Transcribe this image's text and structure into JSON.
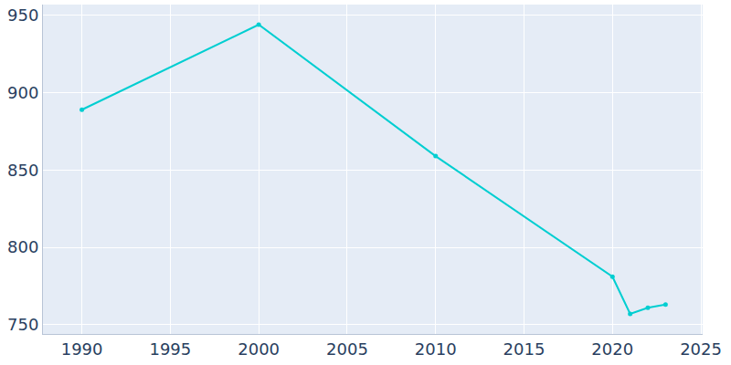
{
  "chart_data": {
    "type": "line",
    "x": [
      1990,
      2000,
      2010,
      2020,
      2021,
      2022,
      2023
    ],
    "values": [
      889,
      944,
      859,
      781,
      757,
      761,
      763
    ],
    "color": "#00ced1",
    "marker": "circle",
    "xlim": [
      1987.8,
      2025.1
    ],
    "xticks": [
      1990,
      1995,
      2000,
      2005,
      2010,
      2015,
      2020,
      2025
    ],
    "ylim": [
      744,
      957
    ],
    "yticks": [
      750,
      800,
      850,
      900,
      950
    ],
    "grid": true
  }
}
